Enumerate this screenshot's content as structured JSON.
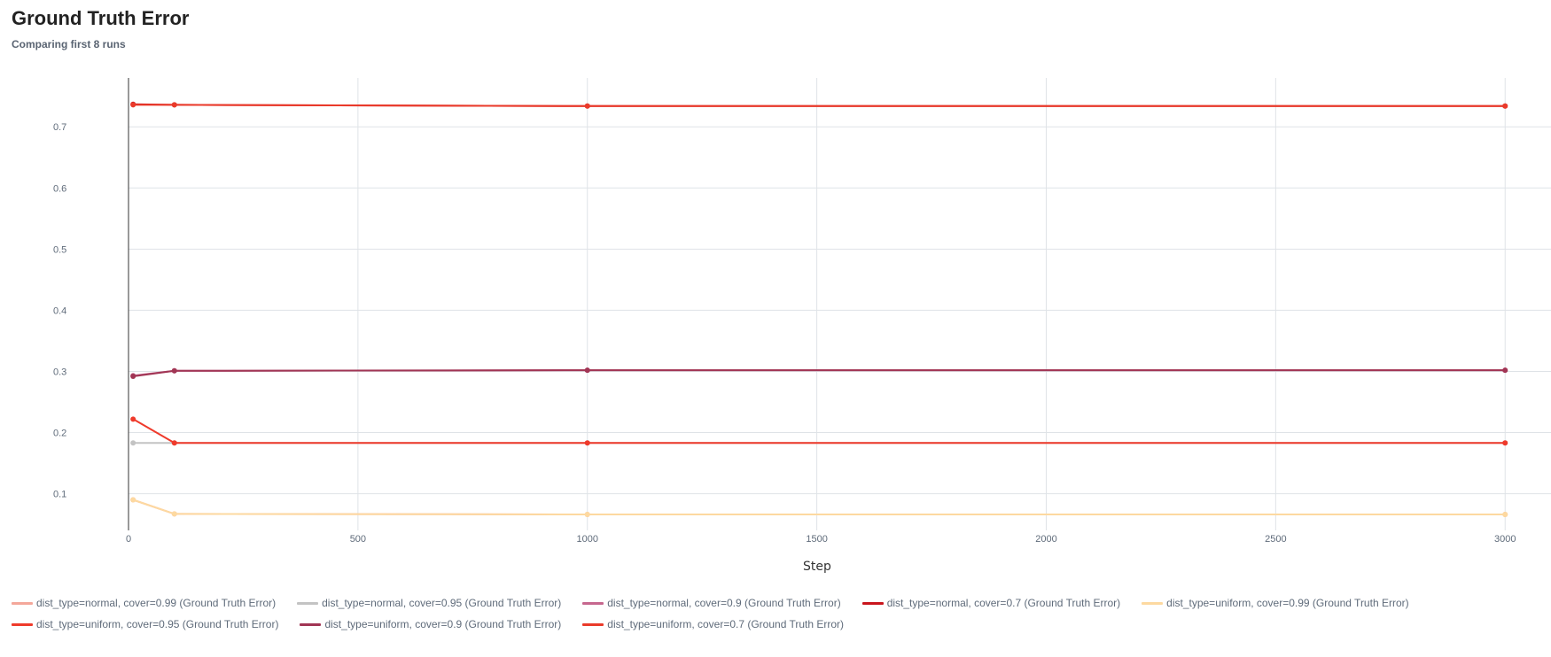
{
  "header": {
    "title": "Ground Truth Error",
    "subtitle": "Comparing first 8 runs"
  },
  "chart_data": {
    "type": "line",
    "title": "Ground Truth Error",
    "xlabel": "Step",
    "ylabel": "",
    "xlim": [
      0,
      3100
    ],
    "ylim": [
      0.04,
      0.78
    ],
    "xticks": [
      0,
      500,
      1000,
      1500,
      2000,
      2500,
      3000
    ],
    "yticks": [
      0.1,
      0.2,
      0.3,
      0.4,
      0.5,
      0.6,
      0.7
    ],
    "grid": true,
    "legend_position": "bottom",
    "series": [
      {
        "name": "dist_type=normal, cover=0.99 (Ground Truth Error)",
        "color": "#f4a79a",
        "x": [
          10,
          100,
          1000,
          3000
        ],
        "y": [
          0.09,
          0.067,
          0.066,
          0.066
        ]
      },
      {
        "name": "dist_type=normal, cover=0.95 (Ground Truth Error)",
        "color": "#c3c3c3",
        "x": [
          10,
          100,
          1000,
          3000
        ],
        "y": [
          0.183,
          0.183,
          0.183,
          0.183
        ]
      },
      {
        "name": "dist_type=normal, cover=0.9 (Ground Truth Error)",
        "color": "#c6678e",
        "x": [
          10,
          100,
          1000,
          3000
        ],
        "y": [
          0.293,
          0.301,
          0.302,
          0.302
        ]
      },
      {
        "name": "dist_type=normal, cover=0.7 (Ground Truth Error)",
        "color": "#c9161d",
        "x": [
          10,
          100,
          1000,
          3000
        ],
        "y": [
          0.737,
          0.736,
          0.734,
          0.734
        ]
      },
      {
        "name": "dist_type=uniform, cover=0.99 (Ground Truth Error)",
        "color": "#fdd9a0",
        "x": [
          10,
          100,
          1000,
          3000
        ],
        "y": [
          0.09,
          0.067,
          0.066,
          0.066
        ]
      },
      {
        "name": "dist_type=uniform, cover=0.95 (Ground Truth Error)",
        "color": "#ef3a2b",
        "x": [
          10,
          100,
          1000,
          3000
        ],
        "y": [
          0.222,
          0.183,
          0.183,
          0.183
        ]
      },
      {
        "name": "dist_type=uniform, cover=0.9 (Ground Truth Error)",
        "color": "#a13554",
        "x": [
          10,
          100,
          1000,
          3000
        ],
        "y": [
          0.292,
          0.301,
          0.302,
          0.302
        ]
      },
      {
        "name": "dist_type=uniform, cover=0.7 (Ground Truth Error)",
        "color": "#ea3a2a",
        "x": [
          10,
          100,
          1000,
          3000
        ],
        "y": [
          0.736,
          0.736,
          0.734,
          0.734
        ]
      }
    ]
  }
}
